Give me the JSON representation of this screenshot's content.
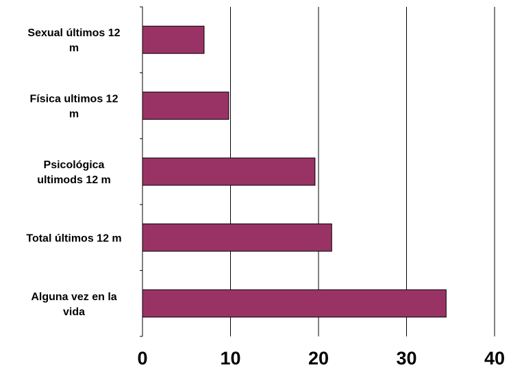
{
  "chart_data": {
    "type": "bar",
    "orientation": "horizontal",
    "categories": [
      [
        "Sexual últimos 12",
        "m"
      ],
      [
        "Física ultimos 12",
        "m"
      ],
      [
        "Psicológica",
        "ultimods 12 m"
      ],
      [
        "Total últimos 12 m"
      ],
      [
        "Alguna vez en la",
        "vida"
      ]
    ],
    "values": [
      7,
      9.8,
      19.6,
      21.5,
      34.5
    ],
    "xlim": [
      0,
      40
    ],
    "xticks": [
      "0",
      "10",
      "20",
      "30",
      "40"
    ],
    "grid": "vertical",
    "legend": "none",
    "colors": {
      "bar": "#993366",
      "bar_edge": "#000000",
      "grid": "#000000"
    }
  }
}
